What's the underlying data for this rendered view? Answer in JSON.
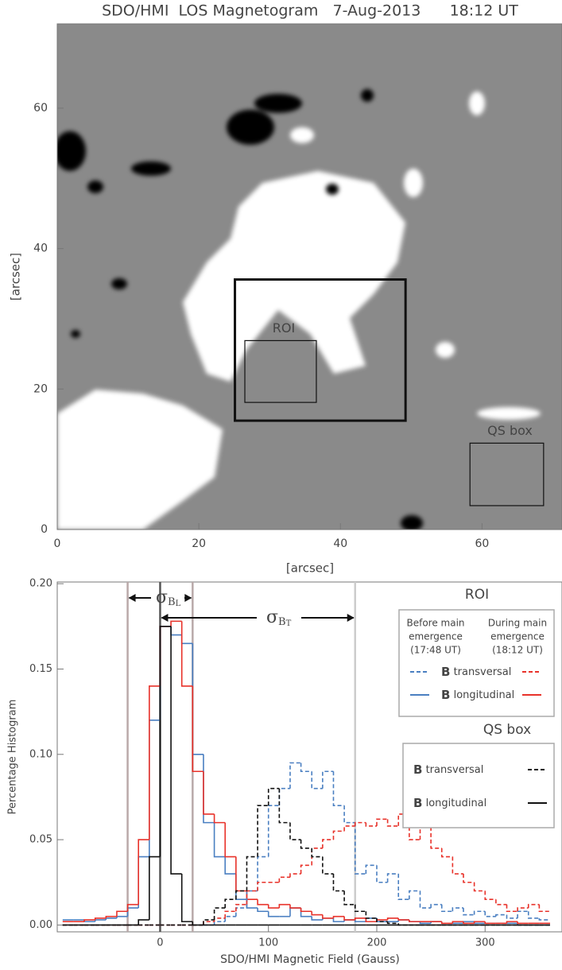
{
  "chart_data": [
    {
      "type": "image",
      "title": "SDO/HMI  LOS Magnetogram   7-Aug-2013      18:12 UT",
      "xlabel": "[arcsec]",
      "ylabel": "[arcsec]",
      "xlim": [
        0,
        71.3
      ],
      "ylim": [
        0,
        72
      ],
      "xticks": [
        0,
        20,
        40,
        60
      ],
      "yticks": [
        0,
        20,
        40,
        60
      ],
      "boxes": [
        {
          "x": [
            25.1,
            49.2
          ],
          "y": [
            15.5,
            35.6
          ]
        },
        {
          "label": "ROI",
          "x": [
            26.5,
            36.6
          ],
          "y": [
            18.1,
            26.9
          ]
        },
        {
          "label": "QS box",
          "x": [
            58.3,
            68.7
          ],
          "y": [
            3.4,
            12.3
          ]
        }
      ]
    },
    {
      "type": "histogram",
      "xlabel": "SDO/HMI Magnetic Field (Gauss)",
      "ylabel": "Percentage Histogram",
      "xlim": [
        -95,
        371
      ],
      "ylim": [
        -0.004,
        0.201
      ],
      "xticks": [
        0,
        100,
        200,
        300
      ],
      "yticks": [
        {
          "value": 0,
          "label": "0.00"
        },
        0.05,
        {
          "value": 0.1,
          "label": "0.10"
        },
        0.15,
        {
          "value": 0.2,
          "label": "0.20"
        }
      ],
      "bins": [
        -90,
        -80,
        -70,
        -60,
        -50,
        -40,
        -30,
        -20,
        -10,
        0,
        10,
        20,
        30,
        40,
        50,
        60,
        70,
        80,
        90,
        100,
        110,
        120,
        130,
        140,
        150,
        160,
        170,
        180,
        190,
        200,
        210,
        220,
        230,
        240,
        250,
        260,
        270,
        280,
        290,
        300,
        310,
        320,
        330,
        340,
        350,
        360
      ],
      "vlines": [
        -30,
        0,
        30,
        180
      ],
      "vline_colors": [
        "#b9a9a9",
        "#555555",
        "#b9a9a9",
        "#cccccc"
      ],
      "annotations": [
        {
          "symbol": "σ",
          "sub": "B",
          "subsub": "L"
        },
        {
          "symbol": "σ",
          "sub": "B",
          "subsub": "T"
        }
      ],
      "legends": [
        {
          "title": "ROI",
          "columns": [
            [
              "Before main",
              "emergence",
              "(17:48 UT)"
            ],
            [
              "During main",
              "emergence",
              "(18:12 UT)"
            ]
          ],
          "entries": [
            {
              "bold": "B",
              "text": "transversal"
            },
            {
              "bold": "B",
              "text": "longitudinal"
            }
          ]
        },
        {
          "title": "QS box",
          "entries": [
            {
              "bold": "B",
              "text": "transversal"
            },
            {
              "bold": "B",
              "text": "longitudinal"
            }
          ]
        }
      ],
      "series": [
        {
          "color": "#4a7fc1",
          "style": "solid",
          "values": [
            0.003,
            0.003,
            0.002,
            0.003,
            0.004,
            0.005,
            0.01,
            0.04,
            0.12,
            0.175,
            0.17,
            0.165,
            0.1,
            0.06,
            0.04,
            0.03,
            0.015,
            0.01,
            0.008,
            0.005,
            0.005,
            0.01,
            0.005,
            0.003,
            0.004,
            0.002,
            0.003,
            0.002,
            0.004,
            0.002,
            0.002,
            0.003,
            0.002,
            0.001,
            0.002,
            0.001,
            0.001,
            0.002,
            0.001,
            0.001,
            0.001,
            0.001,
            0,
            0,
            0
          ]
        },
        {
          "color": "#e8322a",
          "style": "solid",
          "values": [
            0.002,
            0.002,
            0.003,
            0.004,
            0.005,
            0.008,
            0.012,
            0.05,
            0.14,
            0.175,
            0.178,
            0.14,
            0.09,
            0.065,
            0.06,
            0.04,
            0.02,
            0.015,
            0.012,
            0.01,
            0.012,
            0.01,
            0.008,
            0.006,
            0.004,
            0.005,
            0.003,
            0.004,
            0.002,
            0.003,
            0.004,
            0.003,
            0.002,
            0.002,
            0.002,
            0.001,
            0.002,
            0.001,
            0.002,
            0.001,
            0.001,
            0.002,
            0.001,
            0.001,
            0.001
          ]
        },
        {
          "color": "#4a7fc1",
          "style": "dashed",
          "values": [
            0,
            0,
            0,
            0,
            0,
            0,
            0,
            0,
            0,
            0,
            0,
            0,
            0,
            0,
            0.002,
            0.005,
            0.01,
            0.02,
            0.04,
            0.07,
            0.08,
            0.095,
            0.09,
            0.08,
            0.09,
            0.07,
            0.06,
            0.03,
            0.035,
            0.025,
            0.03,
            0.015,
            0.02,
            0.01,
            0.012,
            0.008,
            0.01,
            0.006,
            0.008,
            0.005,
            0.006,
            0.004,
            0.008,
            0.004,
            0.003
          ]
        },
        {
          "color": "#e8322a",
          "style": "dashed",
          "values": [
            0,
            0,
            0,
            0,
            0,
            0,
            0,
            0,
            0,
            0,
            0,
            0,
            0,
            0.002,
            0.004,
            0.008,
            0.012,
            0.02,
            0.025,
            0.025,
            0.028,
            0.03,
            0.035,
            0.045,
            0.05,
            0.055,
            0.058,
            0.06,
            0.058,
            0.062,
            0.058,
            0.065,
            0.05,
            0.065,
            0.045,
            0.04,
            0.03,
            0.025,
            0.02,
            0.015,
            0.012,
            0.008,
            0.01,
            0.012,
            0.008
          ]
        },
        {
          "color": "#111111",
          "style": "dashed",
          "values": [
            0,
            0,
            0,
            0,
            0,
            0,
            0,
            0,
            0,
            0,
            0,
            0,
            0,
            0.003,
            0.01,
            0.015,
            0.02,
            0.04,
            0.07,
            0.08,
            0.06,
            0.05,
            0.045,
            0.04,
            0.03,
            0.02,
            0.012,
            0.008,
            0.004,
            0.002,
            0.001,
            0,
            0,
            0,
            0,
            0,
            0,
            0,
            0,
            0,
            0,
            0,
            0,
            0,
            0
          ]
        },
        {
          "color": "#111111",
          "style": "solid",
          "values": [
            0,
            0,
            0,
            0,
            0,
            0,
            0,
            0.003,
            0.04,
            0.175,
            0.03,
            0.002,
            0,
            0,
            0,
            0,
            0,
            0,
            0,
            0,
            0,
            0,
            0,
            0,
            0,
            0,
            0,
            0,
            0,
            0,
            0,
            0,
            0,
            0,
            0,
            0,
            0,
            0,
            0,
            0,
            0,
            0,
            0,
            0,
            0
          ]
        }
      ]
    }
  ]
}
